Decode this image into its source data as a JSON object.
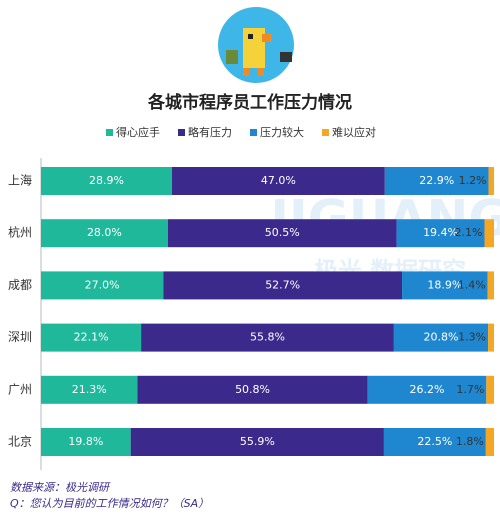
{
  "chart_data": {
    "type": "stacked-bar-horizontal",
    "title": "各城市程序员工作压力情况",
    "categories": [
      "上海",
      "杭州",
      "成都",
      "深圳",
      "广州",
      "北京"
    ],
    "series": [
      {
        "name": "得心应手",
        "color": "#1fb89a",
        "values": [
          28.9,
          28.0,
          27.0,
          22.1,
          21.3,
          19.8
        ],
        "value_labels": [
          "28.9%",
          "28.0%",
          "27.0%",
          "22.1%",
          "21.3%",
          "19.8%"
        ]
      },
      {
        "name": "略有压力",
        "color": "#3b2a8c",
        "values": [
          47.0,
          50.5,
          52.7,
          55.8,
          50.8,
          55.9
        ],
        "value_labels": [
          "47.0%",
          "50.5%",
          "52.7%",
          "55.8%",
          "50.8%",
          "55.9%"
        ]
      },
      {
        "name": "压力较大",
        "color": "#1f87cf",
        "values": [
          22.9,
          19.4,
          18.9,
          20.8,
          26.2,
          22.5
        ],
        "value_labels": [
          "22.9%",
          "19.4%",
          "18.9%",
          "20.8%",
          "26.2%",
          "22.5%"
        ]
      },
      {
        "name": "难以应对",
        "color": "#f5a623",
        "values": [
          1.2,
          2.1,
          1.4,
          1.3,
          1.7,
          1.8
        ],
        "value_labels": [
          "1.2%",
          "2.1%",
          "1.4%",
          "1.3%",
          "1.7%",
          "1.8%"
        ]
      }
    ],
    "xlim": [
      0,
      100
    ],
    "watermark": [
      "JIGUANG",
      "极光 数据研究"
    ],
    "footnotes": [
      "数据来源：极光调研",
      "Q：您认为目前的工作情况如何？（SA）"
    ]
  }
}
